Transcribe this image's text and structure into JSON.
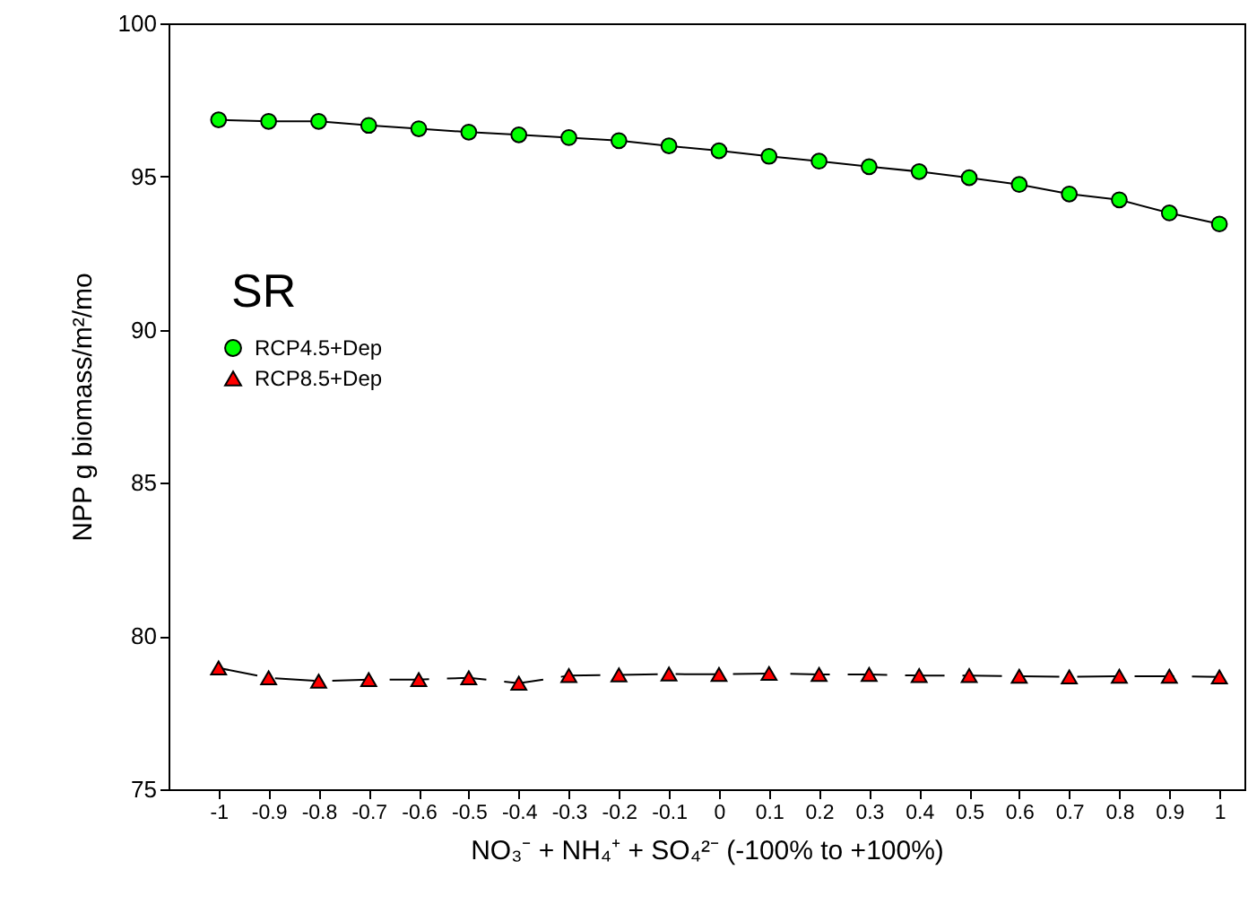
{
  "chart_data": {
    "type": "line",
    "xlabel": "NO₃⁻ + NH₄⁺ + SO₄²⁻ (-100% to +100%)",
    "ylabel": "NPP g biomass/m²/mo",
    "x": [
      -1,
      -0.9,
      -0.8,
      -0.7,
      -0.6,
      -0.5,
      -0.4,
      -0.3,
      -0.2,
      -0.1,
      0,
      0.1,
      0.2,
      0.3,
      0.4,
      0.5,
      0.6,
      0.7,
      0.8,
      0.9,
      1
    ],
    "series": [
      {
        "name": "RCP4.5+Dep",
        "color": "#00ff00",
        "marker": "circle",
        "line_style": "solid",
        "values": [
          96.85,
          96.8,
          96.8,
          96.67,
          96.56,
          96.45,
          96.36,
          96.27,
          96.17,
          96.0,
          95.84,
          95.66,
          95.5,
          95.32,
          95.16,
          94.96,
          94.74,
          94.43,
          94.24,
          93.81,
          93.45
        ]
      },
      {
        "name": "RCP8.5+Dep",
        "color": "#ff0000",
        "marker": "triangle",
        "line_style": "dashed",
        "values": [
          78.96,
          78.64,
          78.53,
          78.58,
          78.58,
          78.64,
          78.46,
          78.71,
          78.73,
          78.76,
          78.75,
          78.78,
          78.75,
          78.75,
          78.71,
          78.71,
          78.69,
          78.67,
          78.69,
          78.69,
          78.67
        ]
      }
    ],
    "xlim": [
      -1.1,
      1.05
    ],
    "xticks": [
      -1,
      -0.9,
      -0.8,
      -0.7,
      -0.6,
      -0.5,
      -0.4,
      -0.3,
      -0.2,
      -0.1,
      0,
      0.1,
      0.2,
      0.3,
      0.4,
      0.5,
      0.6,
      0.7,
      0.8,
      0.9,
      1
    ],
    "ylim": [
      75,
      100
    ],
    "yticks": [
      75,
      80,
      85,
      90,
      95,
      100
    ],
    "annotations": [
      "SR"
    ],
    "legend": "left",
    "grid": false
  }
}
